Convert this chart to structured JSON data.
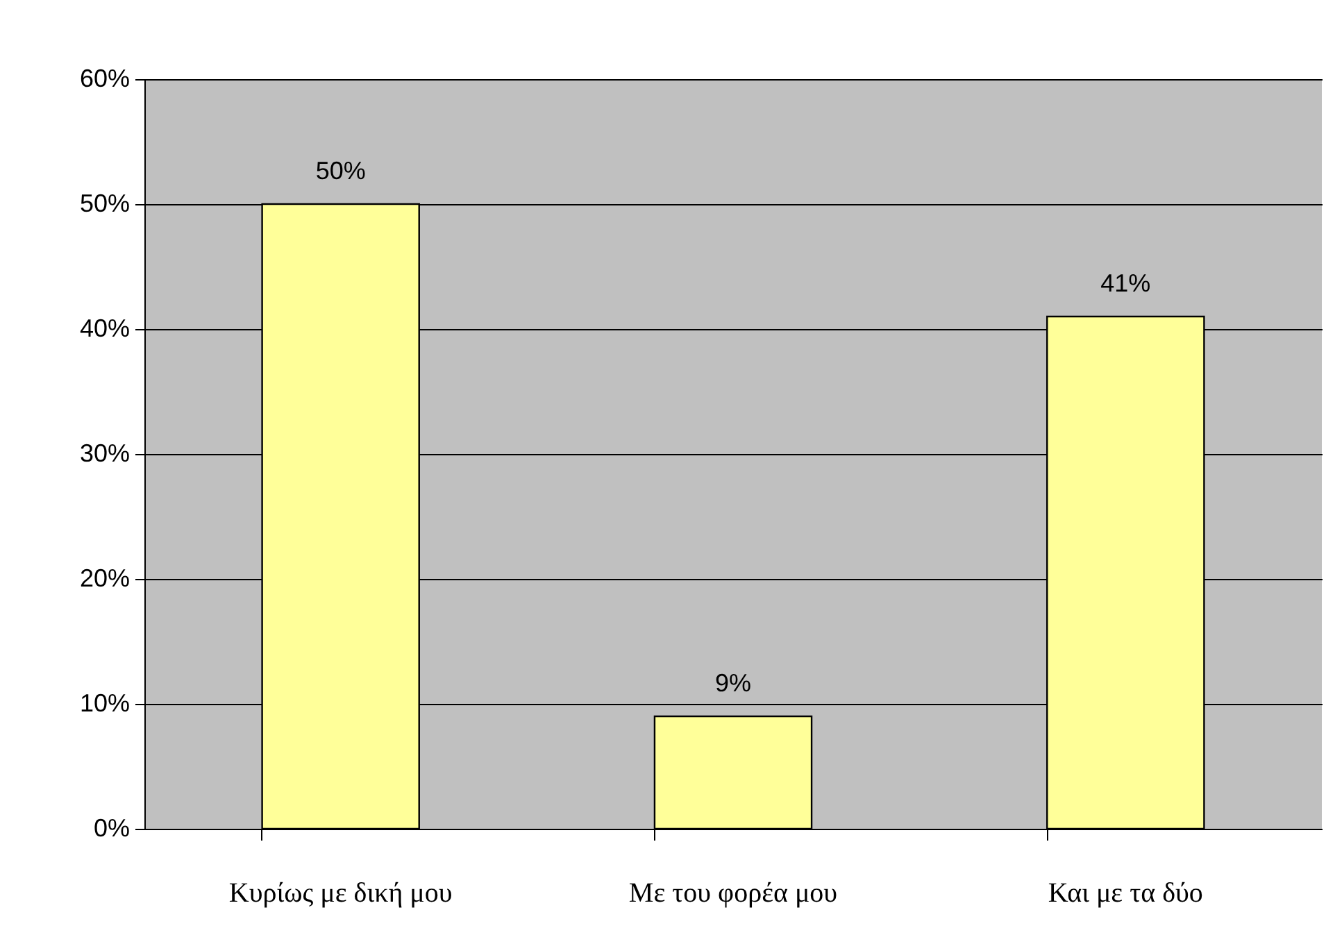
{
  "chart_data": {
    "type": "bar",
    "categories": [
      "Κυρίως με δική μου",
      "Με του φορέα μου",
      "Και με τα δύο"
    ],
    "values": [
      50,
      9,
      41
    ],
    "value_labels": [
      "50%",
      "9%",
      "41%"
    ],
    "color": "#ffff99",
    "ylim": [
      0,
      60
    ],
    "yticks": [
      {
        "value": 0,
        "label": "0%"
      },
      {
        "value": 10,
        "label": "10%"
      },
      {
        "value": 20,
        "label": "20%"
      },
      {
        "value": 30,
        "label": "30%"
      },
      {
        "value": 40,
        "label": "40%"
      },
      {
        "value": 50,
        "label": "50%"
      },
      {
        "value": 60,
        "label": "60%"
      }
    ],
    "grid": "y"
  }
}
